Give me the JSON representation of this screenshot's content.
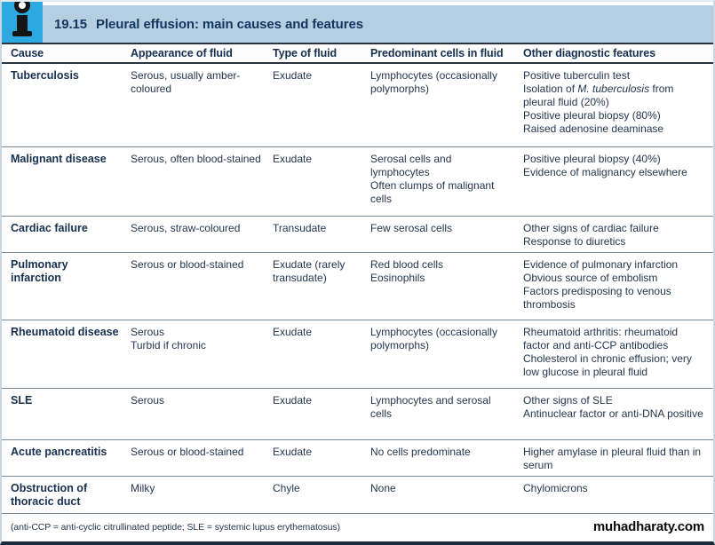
{
  "header": {
    "number": "19.15",
    "title": "Pleural effusion: main causes and features",
    "icon": "info-icon",
    "icon_bg_color": "#2CA9E0",
    "band_bg_color": "#B5CEE1",
    "title_text_color": "#14355E"
  },
  "table": {
    "columns": [
      "Cause",
      "Appearance of fluid",
      "Type of fluid",
      "Predominant cells in fluid",
      "Other diagnostic features"
    ],
    "rows": [
      {
        "cause": "Tuberculosis",
        "appearance": "Serous, usually amber-coloured",
        "type": "Exudate",
        "cells": "Lymphocytes (occasionally polymorphs)",
        "features_pre": "Positive tuberculin test\nIsolation of ",
        "features_italic": "M. tuberculosis",
        "features_post": " from pleural fluid (20%)\nPositive pleural biopsy (80%)\nRaised adenosine deaminase"
      },
      {
        "cause": "Malignant disease",
        "appearance": "Serous, often blood-stained",
        "type": "Exudate",
        "cells": "Serosal cells and lymphocytes\nOften clumps of malignant cells",
        "features": "Positive pleural biopsy (40%)\nEvidence of malignancy elsewhere"
      },
      {
        "cause": "Cardiac failure",
        "appearance": "Serous, straw-coloured",
        "type": "Transudate",
        "cells": "Few serosal cells",
        "features": "Other signs of cardiac failure\nResponse to diuretics"
      },
      {
        "cause": "Pulmonary infarction",
        "appearance": "Serous or blood-stained",
        "type": "Exudate (rarely transudate)",
        "cells": "Red blood cells\nEosinophils",
        "features": "Evidence of pulmonary infarction\nObvious source of embolism\nFactors predisposing to venous thrombosis"
      },
      {
        "cause": "Rheumatoid disease",
        "appearance": "Serous\nTurbid if chronic",
        "type": "Exudate",
        "cells": "Lymphocytes (occasionally polymorphs)",
        "features": "Rheumatoid arthritis: rheumatoid factor and anti-CCP antibodies\nCholesterol in chronic effusion; very low glucose in pleural fluid"
      },
      {
        "cause": "SLE",
        "appearance": "Serous",
        "type": "Exudate",
        "cells": "Lymphocytes and serosal cells",
        "features": "Other signs of SLE\nAntinuclear factor or anti-DNA positive"
      },
      {
        "cause": "Acute pancreatitis",
        "appearance": "Serous or blood-stained",
        "type": "Exudate",
        "cells": "No cells predominate",
        "features": "Higher amylase in pleural fluid than in serum"
      },
      {
        "cause": "Obstruction of thoracic duct",
        "appearance": "Milky",
        "type": "Chyle",
        "cells": "None",
        "features": "Chylomicrons"
      }
    ]
  },
  "footer": {
    "note": "(anti-CCP = anti-cyclic citrullinated peptide; SLE = systemic lupus erythematosus)",
    "watermark": "muhadharaty.com"
  }
}
